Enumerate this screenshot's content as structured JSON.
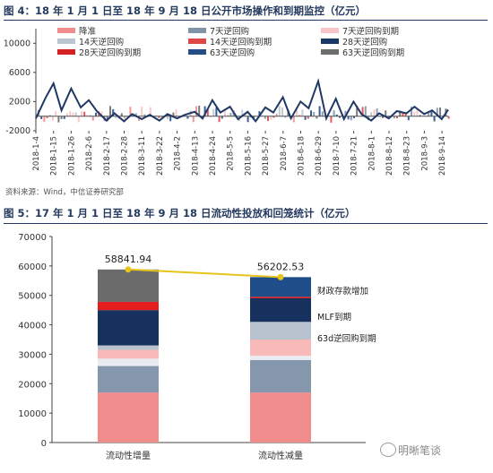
{
  "figure1": {
    "title": "图 4：18 年 1 月 1 日至 18 年 9 月 18 日公开市场操作和到期监控（亿元）",
    "source": "资料来源：Wind，中信证券研究部",
    "chart_data": {
      "type": "bar",
      "xlabel": "",
      "ylabel": "",
      "ylim": [
        -2000,
        12000
      ],
      "yticks": [
        "10000",
        "6000",
        "2000",
        "-2000"
      ],
      "categories": [
        "2018-1-4",
        "2018-1-15",
        "2018-1-26",
        "2018-2-6",
        "2018-2-17",
        "2018-2-28",
        "2018-3-11",
        "2018-3-22",
        "2018-4-2",
        "2018-4-13",
        "2018-4-24",
        "2018-5-5",
        "2018-5-16",
        "2018-5-27",
        "2018-6-7",
        "2018-6-18",
        "2018-6-29",
        "2018-7-10",
        "2018-7-21",
        "2018-8-1",
        "2018-8-12",
        "2018-8-23",
        "2018-9-3",
        "2018-9-14"
      ],
      "legend": [
        "降准",
        "7天逆回购",
        "7天逆回购到期",
        "14天逆回购",
        "14天逆回购到期",
        "28天逆回购",
        "28天逆回购到期",
        "63天逆回购",
        "63天逆回购到期"
      ],
      "legend_placement": "top",
      "grid": false,
      "colors": {
        "降准": "#f08c8c",
        "7天逆回购": "#7f93a9",
        "7天逆回购到期": "#f7c5c5",
        "14天逆回购": "#bcc6d2",
        "14天逆回购到期": "#e04848",
        "28天逆回购": "#1a3765",
        "28天逆回购到期": "#d42222",
        "63天逆回购": "#244d86",
        "63天逆回购到期": "#6d6d6d",
        "net_line": "#203864"
      },
      "net_line": {
        "x": [
          "2018-1-4",
          "2018-1-10",
          "2018-1-15",
          "2018-1-20",
          "2018-1-26",
          "2018-2-1",
          "2018-2-6",
          "2018-2-11",
          "2018-2-17",
          "2018-2-22",
          "2018-2-28",
          "2018-3-5",
          "2018-3-11",
          "2018-3-16",
          "2018-3-22",
          "2018-3-27",
          "2018-4-2",
          "2018-4-7",
          "2018-4-13",
          "2018-4-18",
          "2018-4-24",
          "2018-4-29",
          "2018-5-5",
          "2018-5-10",
          "2018-5-16",
          "2018-5-21",
          "2018-5-27",
          "2018-6-1",
          "2018-6-7",
          "2018-6-12",
          "2018-6-18",
          "2018-6-23",
          "2018-6-29",
          "2018-7-4",
          "2018-7-10",
          "2018-7-15",
          "2018-7-21",
          "2018-7-26",
          "2018-8-1",
          "2018-8-6",
          "2018-8-12",
          "2018-8-17",
          "2018-8-23",
          "2018-8-28",
          "2018-9-3",
          "2018-9-8",
          "2018-9-14",
          "2018-9-18"
        ],
        "values": [
          -300,
          2500,
          4500,
          800,
          3800,
          1200,
          2200,
          700,
          -600,
          400,
          -700,
          300,
          -400,
          200,
          -600,
          300,
          -300,
          200,
          600,
          -300,
          2200,
          500,
          1300,
          -400,
          600,
          -700,
          1200,
          500,
          2600,
          -300,
          2000,
          1100,
          4800,
          -300,
          2400,
          -400,
          2000,
          300,
          -600,
          400,
          -300,
          700,
          400,
          1300,
          300,
          800,
          -400,
          900
        ]
      }
    }
  },
  "figure2": {
    "title": "图 5：17 年 1 月 1 日至 18 年 9 月 18 日流动性投放和回笼统计（亿元）",
    "chart_data": {
      "type": "bar",
      "stacked": true,
      "xlabel": "",
      "ylabel": "",
      "ylim": [
        0,
        70000
      ],
      "yticks": [
        "0",
        "10000",
        "20000",
        "30000",
        "40000",
        "50000",
        "60000",
        "70000"
      ],
      "categories": [
        "流动性增量",
        "流动性减量"
      ],
      "totals": [
        "58841.94",
        "56202.53"
      ],
      "series": [
        {
          "color": "#f08c8c",
          "values": [
            17000,
            17000
          ]
        },
        {
          "color": "#8497ad",
          "values": [
            9000,
            11000
          ]
        },
        {
          "color": "#e8ecf1",
          "values": [
            2500,
            1500
          ]
        },
        {
          "color": "#f8b9b9",
          "values": [
            3000,
            5500
          ]
        },
        {
          "color": "#b8c3cf",
          "values": [
            1500,
            6000
          ]
        },
        {
          "color": "#17315e",
          "values": [
            12000,
            8000
          ]
        },
        {
          "color": "#e41e1e",
          "values": [
            2800,
            500
          ]
        },
        {
          "color": "#6b6b6b",
          "values": [
            11000,
            0
          ]
        },
        {
          "color": "#1f4d8a",
          "values": [
            0,
            6700
          ]
        }
      ],
      "annotations": [
        "财政存款增加",
        "MLF到期",
        "63d逆回购到期"
      ],
      "line_color": "#e5c51c"
    }
  },
  "watermark": "明晰笔谈"
}
